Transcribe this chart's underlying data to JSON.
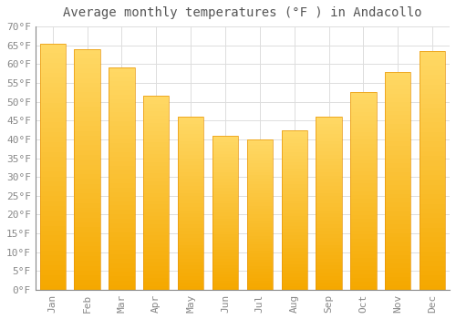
{
  "title": "Average monthly temperatures (°F ) in Andacollo",
  "months": [
    "Jan",
    "Feb",
    "Mar",
    "Apr",
    "May",
    "Jun",
    "Jul",
    "Aug",
    "Sep",
    "Oct",
    "Nov",
    "Dec"
  ],
  "values": [
    65.5,
    64.0,
    59.0,
    51.5,
    46.0,
    41.0,
    40.0,
    42.5,
    46.0,
    52.5,
    58.0,
    63.5
  ],
  "bar_color_bottom": "#F5A800",
  "bar_color_top": "#FFD966",
  "bar_edge_color": "#E8960A",
  "background_color": "#FFFFFF",
  "grid_color": "#DDDDDD",
  "text_color": "#888888",
  "title_color": "#555555",
  "spine_color": "#888888",
  "ylim": [
    0,
    70
  ],
  "yticks": [
    0,
    5,
    10,
    15,
    20,
    25,
    30,
    35,
    40,
    45,
    50,
    55,
    60,
    65,
    70
  ],
  "title_fontsize": 10,
  "tick_fontsize": 8,
  "bar_width": 0.75
}
